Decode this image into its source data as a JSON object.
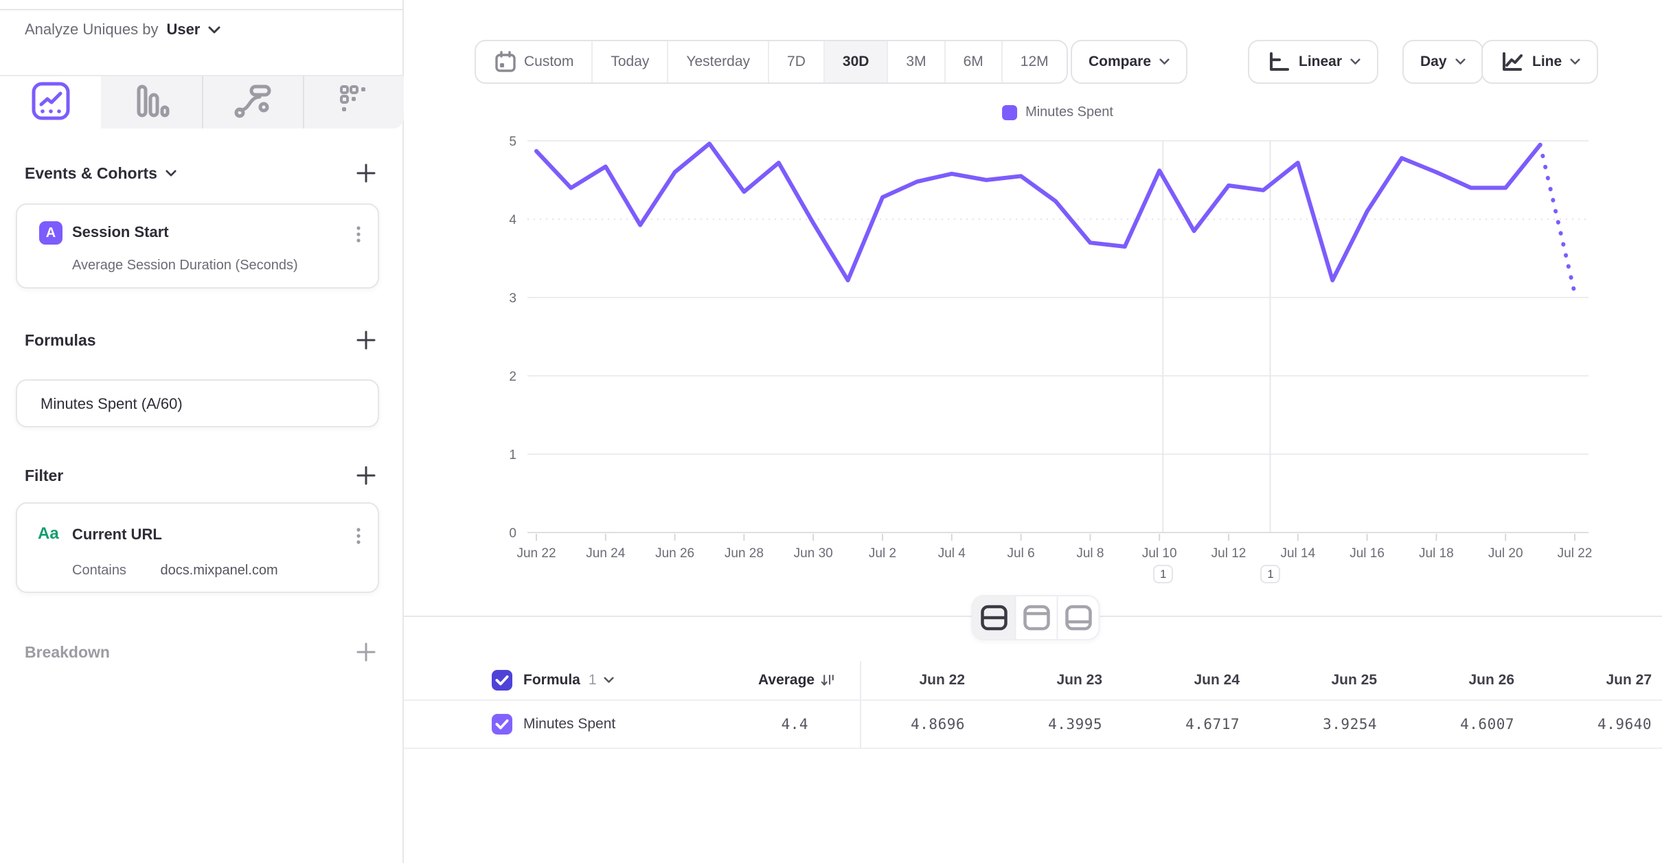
{
  "sidebar": {
    "analyze_label": "Analyze Uniques by",
    "analyze_value": "User",
    "tabs": [
      {
        "id": "insights",
        "icon": "insights-chart-icon",
        "active": true
      },
      {
        "id": "bar",
        "icon": "bar-chart-icon",
        "active": false
      },
      {
        "id": "flows",
        "icon": "flows-icon",
        "active": false
      },
      {
        "id": "retention",
        "icon": "retention-grid-icon",
        "active": false
      }
    ],
    "events_cohorts": {
      "title": "Events & Cohorts",
      "items": [
        {
          "badge": "A",
          "title": "Session Start",
          "subtitle": "Average Session Duration (Seconds)"
        }
      ]
    },
    "formulas": {
      "title": "Formulas",
      "items": [
        {
          "title": "Minutes Spent (A/60)"
        }
      ]
    },
    "filter": {
      "title": "Filter",
      "items": [
        {
          "badge": "Aa",
          "title": "Current URL",
          "operator": "Contains",
          "value": "docs.mixpanel.com"
        }
      ]
    },
    "breakdown": {
      "title": "Breakdown"
    }
  },
  "toolbar": {
    "date_ranges": [
      "Custom",
      "Today",
      "Yesterday",
      "7D",
      "30D",
      "3M",
      "6M",
      "12M"
    ],
    "active_range": "30D",
    "compare_label": "Compare",
    "scale_label": "Linear",
    "interval_label": "Day",
    "chart_type_label": "Line"
  },
  "legend": {
    "series": "Minutes Spent"
  },
  "chart_data": {
    "type": "line",
    "title": "Minutes Spent over time",
    "series": [
      {
        "name": "Minutes Spent",
        "color": "#7C5CFC"
      }
    ],
    "x": [
      "Jun 22",
      "Jun 23",
      "Jun 24",
      "Jun 25",
      "Jun 26",
      "Jun 27",
      "Jun 28",
      "Jun 29",
      "Jun 30",
      "Jul 1",
      "Jul 2",
      "Jul 3",
      "Jul 4",
      "Jul 5",
      "Jul 6",
      "Jul 7",
      "Jul 8",
      "Jul 9",
      "Jul 10",
      "Jul 11",
      "Jul 12",
      "Jul 13",
      "Jul 14",
      "Jul 15",
      "Jul 16",
      "Jul 17",
      "Jul 18",
      "Jul 19",
      "Jul 20",
      "Jul 21",
      "Jul 22"
    ],
    "values": [
      4.8696,
      4.3995,
      4.6717,
      3.9254,
      4.6007,
      4.964,
      4.35,
      4.72,
      3.95,
      3.22,
      4.28,
      4.48,
      4.58,
      4.5,
      4.55,
      4.23,
      3.7,
      3.65,
      4.62,
      3.85,
      4.43,
      4.37,
      4.72,
      3.22,
      4.1,
      4.78,
      4.6,
      4.4,
      4.4,
      4.95,
      3.05
    ],
    "ylim": [
      0,
      5
    ],
    "y_ticks": [
      0,
      1,
      2,
      3,
      4,
      5
    ],
    "x_label_every": 2,
    "last_segment_dotted": true,
    "grid": "horizontal",
    "legend_position": "top-center"
  },
  "annotations": [
    {
      "label": "1",
      "date": "Jul 10",
      "day_index": 18.1
    },
    {
      "label": "1",
      "date": "Jul 13",
      "day_index": 21.2
    }
  ],
  "table": {
    "group_label": "Formula",
    "group_index": "1",
    "average_label": "Average",
    "columns": [
      "Jun 22",
      "Jun 23",
      "Jun 24",
      "Jun 25",
      "Jun 26",
      "Jun 27"
    ],
    "rows": [
      {
        "name": "Minutes Spent",
        "average": "4.4",
        "values": [
          "4.8696",
          "4.3995",
          "4.6717",
          "3.9254",
          "4.6007",
          "4.9640"
        ]
      }
    ]
  },
  "colors": {
    "accent_purple": "#7C5CFC",
    "checkbox_header": "#4E42D9",
    "checkbox_row": "#8262FF",
    "green_type": "#139D6D",
    "text_dark": "#2D2D37",
    "text_gray": "#6B6B76",
    "text_light": "#9B9BA3",
    "border": "#E4E4E8",
    "gridline": "#EDEDF0",
    "tab_bg": "#F3F3F5",
    "active_segment_bg": "#F4F4F6"
  }
}
